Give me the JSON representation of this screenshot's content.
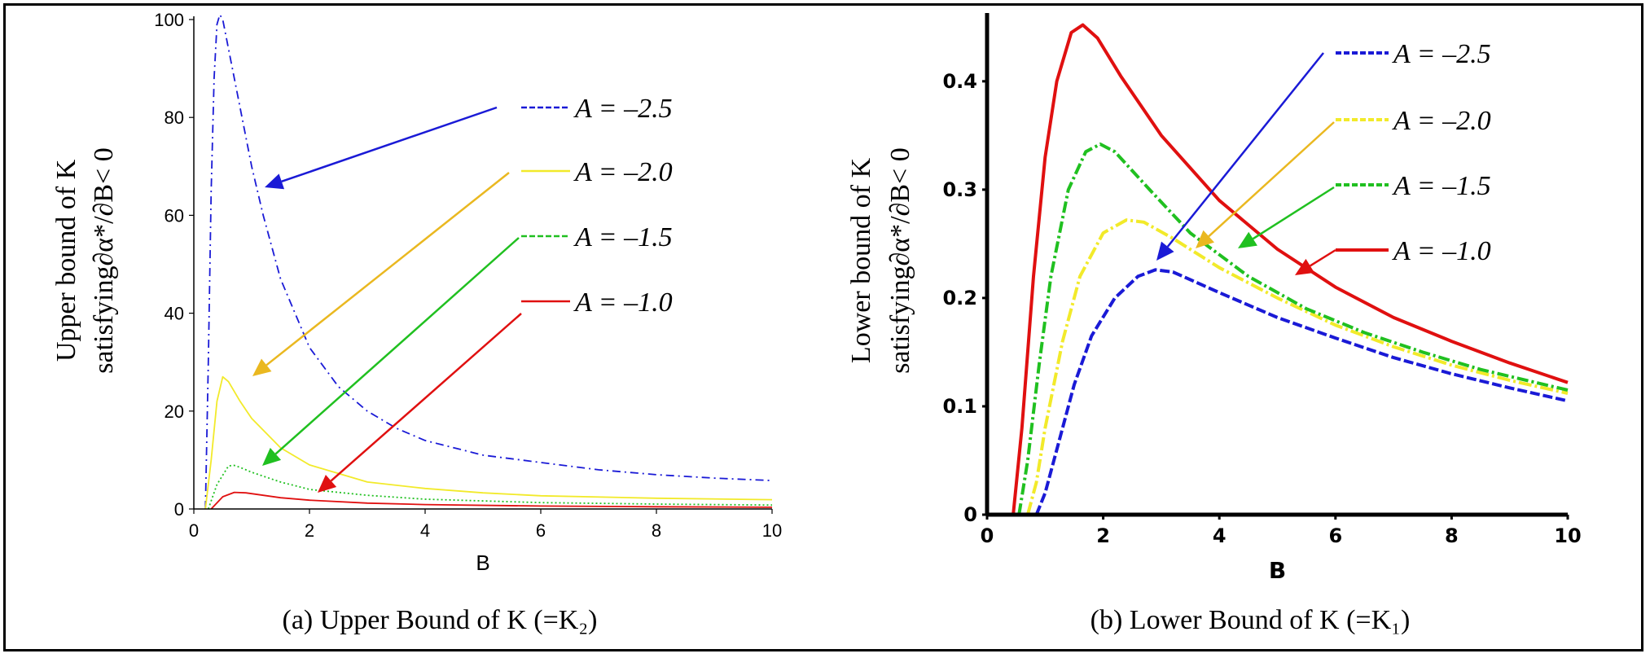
{
  "figure": {
    "caption_a": "(a) Upper Bound of K (=K₂)",
    "caption_b": "(b) Lower Bound of K (=K₁)"
  },
  "chart_data": [
    {
      "type": "line",
      "id": "a",
      "title": "(a) Upper Bound of K (=K2)",
      "xlabel": "B",
      "ylabel_line1": "Upper bound of K",
      "ylabel_line2": "satisfying∂α*/∂B< 0",
      "xlim": [
        0,
        10
      ],
      "ylim": [
        0,
        100
      ],
      "xticks": [
        0,
        2,
        4,
        6,
        8,
        10
      ],
      "yticks": [
        0,
        20,
        40,
        60,
        80,
        100
      ],
      "grid": false,
      "legend_position": "right",
      "series": [
        {
          "name": "A = –2.5",
          "color": "#1a1ad6",
          "dash": "10 5 2 5",
          "points": [
            [
              0.2,
              0
            ],
            [
              0.25,
              30
            ],
            [
              0.3,
              65
            ],
            [
              0.35,
              88
            ],
            [
              0.4,
              99
            ],
            [
              0.45,
              101
            ],
            [
              0.5,
              100
            ],
            [
              0.6,
              94
            ],
            [
              0.8,
              82
            ],
            [
              1.0,
              70
            ],
            [
              1.2,
              60
            ],
            [
              1.5,
              47
            ],
            [
              2,
              33
            ],
            [
              2.5,
              25
            ],
            [
              3,
              20
            ],
            [
              3.5,
              16.5
            ],
            [
              4,
              14
            ],
            [
              5,
              11
            ],
            [
              6,
              9.5
            ],
            [
              7,
              8
            ],
            [
              8,
              7
            ],
            [
              9,
              6.3
            ],
            [
              10,
              5.8
            ]
          ]
        },
        {
          "name": "A = –2.0",
          "color": "#f2ea2a",
          "dash": "none",
          "points": [
            [
              0.2,
              0
            ],
            [
              0.3,
              10
            ],
            [
              0.4,
              22
            ],
            [
              0.5,
              27
            ],
            [
              0.6,
              26
            ],
            [
              0.8,
              22
            ],
            [
              1,
              18.5
            ],
            [
              1.5,
              12.5
            ],
            [
              2,
              9
            ],
            [
              3,
              5.5
            ],
            [
              4,
              4.2
            ],
            [
              5,
              3.3
            ],
            [
              6,
              2.7
            ],
            [
              8,
              2.2
            ],
            [
              10,
              1.9
            ]
          ]
        },
        {
          "name": "A = –1.5",
          "color": "#20c020",
          "dash": "2 3",
          "points": [
            [
              0.25,
              0
            ],
            [
              0.4,
              5
            ],
            [
              0.6,
              8.8
            ],
            [
              0.7,
              8.9
            ],
            [
              0.8,
              8.5
            ],
            [
              1,
              7.5
            ],
            [
              1.5,
              5.5
            ],
            [
              2,
              4
            ],
            [
              3,
              2.8
            ],
            [
              4,
              2
            ],
            [
              6,
              1.3
            ],
            [
              8,
              1.0
            ],
            [
              10,
              0.8
            ]
          ]
        },
        {
          "name": "A = –1.0",
          "color": "#e01010",
          "dash": "none",
          "points": [
            [
              0.3,
              0
            ],
            [
              0.5,
              2.5
            ],
            [
              0.7,
              3.4
            ],
            [
              0.9,
              3.3
            ],
            [
              1.2,
              2.8
            ],
            [
              1.5,
              2.3
            ],
            [
              2,
              1.8
            ],
            [
              3,
              1.2
            ],
            [
              4,
              0.9
            ],
            [
              6,
              0.6
            ],
            [
              8,
              0.45
            ],
            [
              10,
              0.35
            ]
          ]
        }
      ]
    },
    {
      "type": "line",
      "id": "b",
      "title": "(b) Lower Bound of K (=K1)",
      "xlabel": "B",
      "ylabel_line1": "Lower bound of K",
      "ylabel_line2": "satisfying∂α*/∂B< 0",
      "xlim": [
        0,
        10
      ],
      "ylim": [
        0,
        0.46
      ],
      "xticks": [
        0,
        2,
        4,
        6,
        8,
        10
      ],
      "xtick_labels": [
        "0",
        "2",
        "4",
        "6",
        "8",
        "10"
      ],
      "yticks": [
        0,
        0.1,
        0.2,
        0.3,
        0.4
      ],
      "ytick_labels": [
        "0",
        "0.1",
        "0.2",
        "0.3",
        "0.4"
      ],
      "grid": false,
      "legend_position": "right",
      "series": [
        {
          "name": "A = –2.5",
          "color": "#1a1ad6",
          "dash": "12 4",
          "points": [
            [
              0.85,
              0
            ],
            [
              1.0,
              0.02
            ],
            [
              1.2,
              0.06
            ],
            [
              1.5,
              0.12
            ],
            [
              1.8,
              0.165
            ],
            [
              2.2,
              0.2
            ],
            [
              2.6,
              0.22
            ],
            [
              2.9,
              0.226
            ],
            [
              3.2,
              0.224
            ],
            [
              4,
              0.205
            ],
            [
              5,
              0.182
            ],
            [
              6,
              0.163
            ],
            [
              7,
              0.145
            ],
            [
              8,
              0.13
            ],
            [
              9,
              0.117
            ],
            [
              10,
              0.105
            ]
          ]
        },
        {
          "name": "A = –2.0",
          "color": "#f2ea2a",
          "dash": "16 4 3 4",
          "points": [
            [
              0.7,
              0
            ],
            [
              0.85,
              0.03
            ],
            [
              1.0,
              0.08
            ],
            [
              1.3,
              0.16
            ],
            [
              1.6,
              0.22
            ],
            [
              2.0,
              0.26
            ],
            [
              2.4,
              0.272
            ],
            [
              2.7,
              0.27
            ],
            [
              3.2,
              0.255
            ],
            [
              4,
              0.228
            ],
            [
              5,
              0.2
            ],
            [
              6,
              0.175
            ],
            [
              7,
              0.155
            ],
            [
              8,
              0.138
            ],
            [
              9,
              0.124
            ],
            [
              10,
              0.112
            ]
          ]
        },
        {
          "name": "A = –1.5",
          "color": "#20c020",
          "dash": "14 4 3 4",
          "points": [
            [
              0.55,
              0
            ],
            [
              0.7,
              0.05
            ],
            [
              0.9,
              0.14
            ],
            [
              1.1,
              0.22
            ],
            [
              1.4,
              0.3
            ],
            [
              1.7,
              0.335
            ],
            [
              1.95,
              0.342
            ],
            [
              2.2,
              0.335
            ],
            [
              2.8,
              0.3
            ],
            [
              3.5,
              0.26
            ],
            [
              4.5,
              0.22
            ],
            [
              5.5,
              0.19
            ],
            [
              6.5,
              0.168
            ],
            [
              7.5,
              0.15
            ],
            [
              8.5,
              0.134
            ],
            [
              10,
              0.115
            ]
          ]
        },
        {
          "name": "A = –1.0",
          "color": "#e01010",
          "dash": "none",
          "points": [
            [
              0.45,
              0
            ],
            [
              0.6,
              0.08
            ],
            [
              0.8,
              0.22
            ],
            [
              1.0,
              0.33
            ],
            [
              1.2,
              0.4
            ],
            [
              1.45,
              0.445
            ],
            [
              1.65,
              0.452
            ],
            [
              1.9,
              0.44
            ],
            [
              2.3,
              0.405
            ],
            [
              3,
              0.35
            ],
            [
              4,
              0.29
            ],
            [
              5,
              0.245
            ],
            [
              6,
              0.21
            ],
            [
              7,
              0.182
            ],
            [
              8,
              0.16
            ],
            [
              9,
              0.14
            ],
            [
              10,
              0.122
            ]
          ]
        }
      ]
    }
  ]
}
